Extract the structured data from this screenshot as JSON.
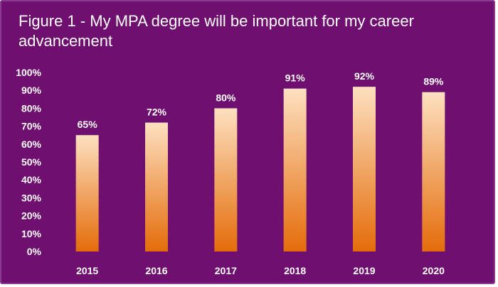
{
  "chart_data": {
    "type": "bar",
    "title": "Figure 1 - My MPA degree will be important for my career advancement",
    "categories": [
      "2015",
      "2016",
      "2017",
      "2018",
      "2019",
      "2020"
    ],
    "values": [
      65,
      72,
      80,
      91,
      92,
      89
    ],
    "data_labels": [
      "65%",
      "72%",
      "80%",
      "91%",
      "92%",
      "89%"
    ],
    "y_ticks": [
      "0%",
      "10%",
      "20%",
      "30%",
      "40%",
      "50%",
      "60%",
      "70%",
      "80%",
      "90%",
      "100%"
    ],
    "ylim": [
      0,
      100
    ],
    "xlabel": "",
    "ylabel": "",
    "grid": false,
    "colors": {
      "background": "#6f0f70",
      "bar_top": "#fde0c0",
      "bar_bottom": "#e46c0a",
      "text": "#ffffff"
    }
  }
}
